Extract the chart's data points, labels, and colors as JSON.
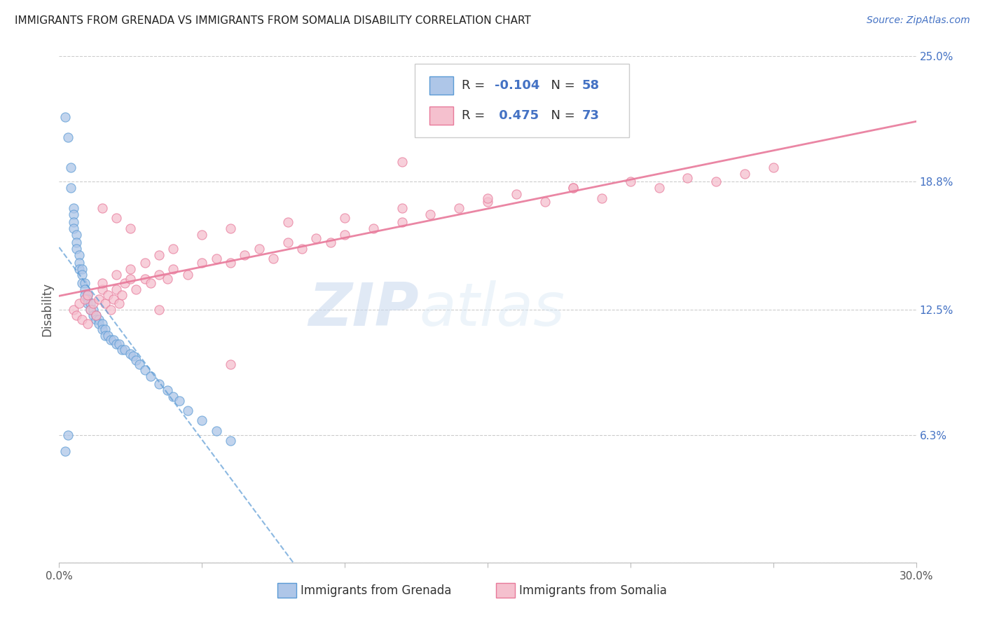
{
  "title": "IMMIGRANTS FROM GRENADA VS IMMIGRANTS FROM SOMALIA DISABILITY CORRELATION CHART",
  "source": "Source: ZipAtlas.com",
  "ylabel": "Disability",
  "xlim": [
    0.0,
    0.3
  ],
  "ylim": [
    0.0,
    0.25
  ],
  "xtick_positions": [
    0.0,
    0.05,
    0.1,
    0.15,
    0.2,
    0.25,
    0.3
  ],
  "xtick_labels": [
    "0.0%",
    "",
    "",
    "",
    "",
    "",
    "30.0%"
  ],
  "ytick_vals_right": [
    0.25,
    0.188,
    0.125,
    0.063,
    0.0
  ],
  "ytick_labels_right": [
    "25.0%",
    "18.8%",
    "12.5%",
    "6.3%",
    ""
  ],
  "grenada_fill": "#aec6e8",
  "grenada_edge": "#5b9bd5",
  "somalia_fill": "#f5c0ce",
  "somalia_edge": "#e8799a",
  "grenada_line_color": "#5b9bd5",
  "somalia_line_color": "#e8799a",
  "R_grenada": -0.104,
  "N_grenada": 58,
  "R_somalia": 0.475,
  "N_somalia": 73,
  "grenada_scatter_x": [
    0.002,
    0.003,
    0.004,
    0.004,
    0.005,
    0.005,
    0.005,
    0.005,
    0.006,
    0.006,
    0.006,
    0.007,
    0.007,
    0.007,
    0.008,
    0.008,
    0.008,
    0.009,
    0.009,
    0.009,
    0.01,
    0.01,
    0.01,
    0.011,
    0.011,
    0.012,
    0.012,
    0.013,
    0.013,
    0.014,
    0.014,
    0.015,
    0.015,
    0.016,
    0.016,
    0.017,
    0.018,
    0.019,
    0.02,
    0.021,
    0.022,
    0.023,
    0.025,
    0.026,
    0.027,
    0.028,
    0.03,
    0.032,
    0.035,
    0.038,
    0.04,
    0.042,
    0.045,
    0.05,
    0.055,
    0.06,
    0.003,
    0.002
  ],
  "grenada_scatter_y": [
    0.22,
    0.21,
    0.195,
    0.185,
    0.175,
    0.172,
    0.168,
    0.165,
    0.162,
    0.158,
    0.155,
    0.152,
    0.148,
    0.145,
    0.145,
    0.142,
    0.138,
    0.138,
    0.135,
    0.132,
    0.132,
    0.13,
    0.128,
    0.128,
    0.125,
    0.125,
    0.122,
    0.122,
    0.12,
    0.12,
    0.118,
    0.118,
    0.115,
    0.115,
    0.112,
    0.112,
    0.11,
    0.11,
    0.108,
    0.108,
    0.105,
    0.105,
    0.103,
    0.102,
    0.1,
    0.098,
    0.095,
    0.092,
    0.088,
    0.085,
    0.082,
    0.08,
    0.075,
    0.07,
    0.065,
    0.06,
    0.063,
    0.055
  ],
  "somalia_scatter_x": [
    0.005,
    0.006,
    0.007,
    0.008,
    0.009,
    0.01,
    0.01,
    0.011,
    0.012,
    0.013,
    0.014,
    0.015,
    0.016,
    0.017,
    0.018,
    0.019,
    0.02,
    0.021,
    0.022,
    0.023,
    0.025,
    0.027,
    0.03,
    0.032,
    0.035,
    0.038,
    0.04,
    0.045,
    0.05,
    0.055,
    0.06,
    0.065,
    0.07,
    0.075,
    0.08,
    0.085,
    0.09,
    0.095,
    0.1,
    0.11,
    0.12,
    0.13,
    0.14,
    0.15,
    0.16,
    0.17,
    0.18,
    0.19,
    0.2,
    0.21,
    0.22,
    0.23,
    0.24,
    0.25,
    0.015,
    0.02,
    0.025,
    0.03,
    0.035,
    0.04,
    0.05,
    0.06,
    0.08,
    0.1,
    0.12,
    0.15,
    0.18,
    0.015,
    0.02,
    0.025,
    0.12,
    0.035,
    0.06
  ],
  "somalia_scatter_y": [
    0.125,
    0.122,
    0.128,
    0.12,
    0.13,
    0.118,
    0.132,
    0.125,
    0.128,
    0.122,
    0.13,
    0.135,
    0.128,
    0.132,
    0.125,
    0.13,
    0.135,
    0.128,
    0.132,
    0.138,
    0.14,
    0.135,
    0.14,
    0.138,
    0.142,
    0.14,
    0.145,
    0.142,
    0.148,
    0.15,
    0.148,
    0.152,
    0.155,
    0.15,
    0.158,
    0.155,
    0.16,
    0.158,
    0.162,
    0.165,
    0.168,
    0.172,
    0.175,
    0.178,
    0.182,
    0.178,
    0.185,
    0.18,
    0.188,
    0.185,
    0.19,
    0.188,
    0.192,
    0.195,
    0.138,
    0.142,
    0.145,
    0.148,
    0.152,
    0.155,
    0.162,
    0.165,
    0.168,
    0.17,
    0.175,
    0.18,
    0.185,
    0.175,
    0.17,
    0.165,
    0.198,
    0.125,
    0.098
  ],
  "watermark_zip": "ZIP",
  "watermark_atlas": "atlas",
  "background_color": "#ffffff",
  "grid_color": "#cccccc",
  "legend_r_label_color": "#333333",
  "legend_value_color": "#4472c4",
  "right_tick_color": "#4472c4",
  "title_color": "#222222",
  "source_color": "#4472c4"
}
